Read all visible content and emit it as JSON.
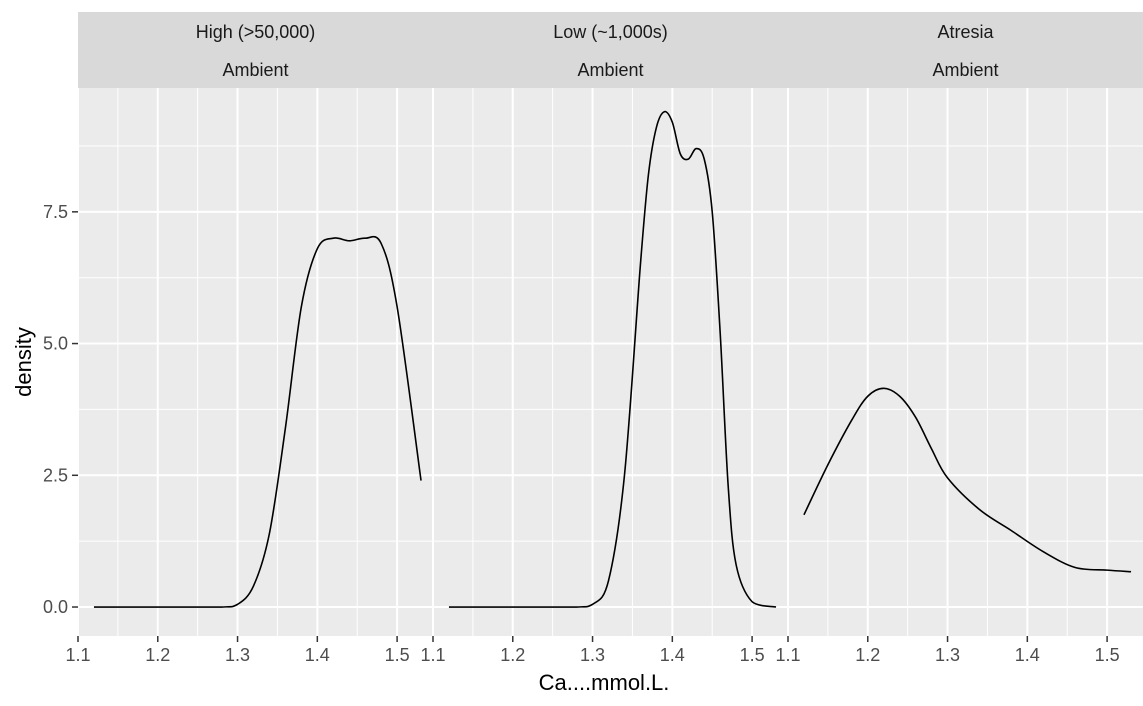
{
  "chart_data": {
    "type": "line",
    "title": "",
    "xlabel": "Ca....mmol.L.",
    "ylabel": "density",
    "xlim": [
      1.1,
      1.545
    ],
    "ylim": [
      -0.55,
      9.85
    ],
    "x_ticks": [
      "1.1",
      "1.2",
      "1.3",
      "1.4",
      "1.5"
    ],
    "x_tick_values": [
      1.1,
      1.2,
      1.3,
      1.4,
      1.5
    ],
    "y_ticks": [
      "0.0",
      "2.5",
      "5.0",
      "7.5"
    ],
    "y_tick_values": [
      0,
      2.5,
      5.0,
      7.5
    ],
    "grid": true,
    "legend": "none",
    "panel_background": "#ebebeb",
    "strip_background": "#d9d9d9",
    "grid_color": "#ffffff",
    "line_color": "#000000",
    "facets": [
      {
        "strip": [
          "High (>50,000)",
          "Ambient"
        ],
        "x": [
          1.12,
          1.2,
          1.28,
          1.3,
          1.32,
          1.34,
          1.36,
          1.38,
          1.4,
          1.42,
          1.44,
          1.46,
          1.48,
          1.5,
          1.53
        ],
        "y": [
          0.0,
          0.0,
          0.0,
          0.05,
          0.4,
          1.4,
          3.4,
          5.7,
          6.8,
          7.0,
          6.95,
          7.0,
          6.9,
          5.7,
          2.4
        ]
      },
      {
        "strip": [
          "Low (~1,000s)",
          "Ambient"
        ],
        "x": [
          1.12,
          1.2,
          1.28,
          1.3,
          1.32,
          1.34,
          1.36,
          1.37,
          1.38,
          1.39,
          1.4,
          1.41,
          1.42,
          1.43,
          1.44,
          1.45,
          1.46,
          1.47,
          1.48,
          1.5,
          1.53
        ],
        "y": [
          0.0,
          0.0,
          0.0,
          0.05,
          0.5,
          2.5,
          6.5,
          8.2,
          9.1,
          9.4,
          9.2,
          8.6,
          8.5,
          8.7,
          8.5,
          7.5,
          5.2,
          2.3,
          0.8,
          0.1,
          0.0
        ]
      },
      {
        "strip": [
          "Atresia",
          "Ambient"
        ],
        "x": [
          1.12,
          1.15,
          1.18,
          1.2,
          1.22,
          1.24,
          1.26,
          1.28,
          1.3,
          1.34,
          1.38,
          1.42,
          1.46,
          1.5,
          1.53
        ],
        "y": [
          1.75,
          2.7,
          3.55,
          4.0,
          4.15,
          4.0,
          3.6,
          3.0,
          2.45,
          1.85,
          1.45,
          1.05,
          0.75,
          0.7,
          0.67
        ]
      }
    ]
  }
}
